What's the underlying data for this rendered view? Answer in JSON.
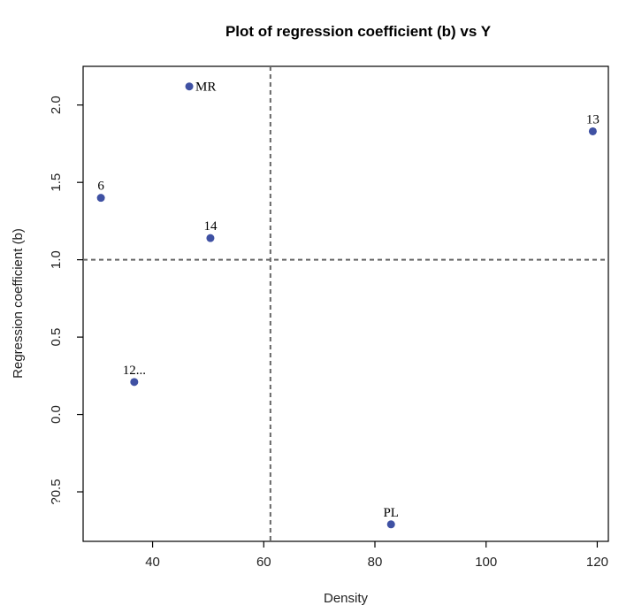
{
  "chart_data": {
    "type": "scatter",
    "title": "Plot of regression coefficient (b) vs Y",
    "xlabel": "Density",
    "ylabel": "Regression coefficient (b)",
    "xlim": [
      27.5,
      122
    ],
    "ylim": [
      -0.82,
      2.25
    ],
    "x_ticks": [
      40,
      60,
      80,
      100,
      120
    ],
    "y_ticks": [
      2.0,
      1.5,
      1.0,
      0.5,
      0.0,
      -0.5
    ],
    "x_tick_labels": [
      "40",
      "60",
      "80",
      "100",
      "120"
    ],
    "y_tick_labels": [
      "2.0",
      "1.5",
      "1.0",
      "0.5",
      "0.0",
      "?0.5"
    ],
    "reference_lines": {
      "x": 61.2,
      "y": 1.0
    },
    "grid": false,
    "points": [
      {
        "label": "MR",
        "x": 46.6,
        "y": 2.12,
        "label_position": "right"
      },
      {
        "label": "13",
        "x": 119.2,
        "y": 1.83,
        "label_position": "top"
      },
      {
        "label": "6",
        "x": 30.7,
        "y": 1.4,
        "label_position": "top"
      },
      {
        "label": "14",
        "x": 50.4,
        "y": 1.14,
        "label_position": "top"
      },
      {
        "label": "12...",
        "x": 36.7,
        "y": 0.21,
        "label_position": "top"
      },
      {
        "label": "PL",
        "x": 82.9,
        "y": -0.71,
        "label_position": "top"
      }
    ],
    "point_color": "#3f51a3",
    "reference_line_color": "#666666"
  }
}
